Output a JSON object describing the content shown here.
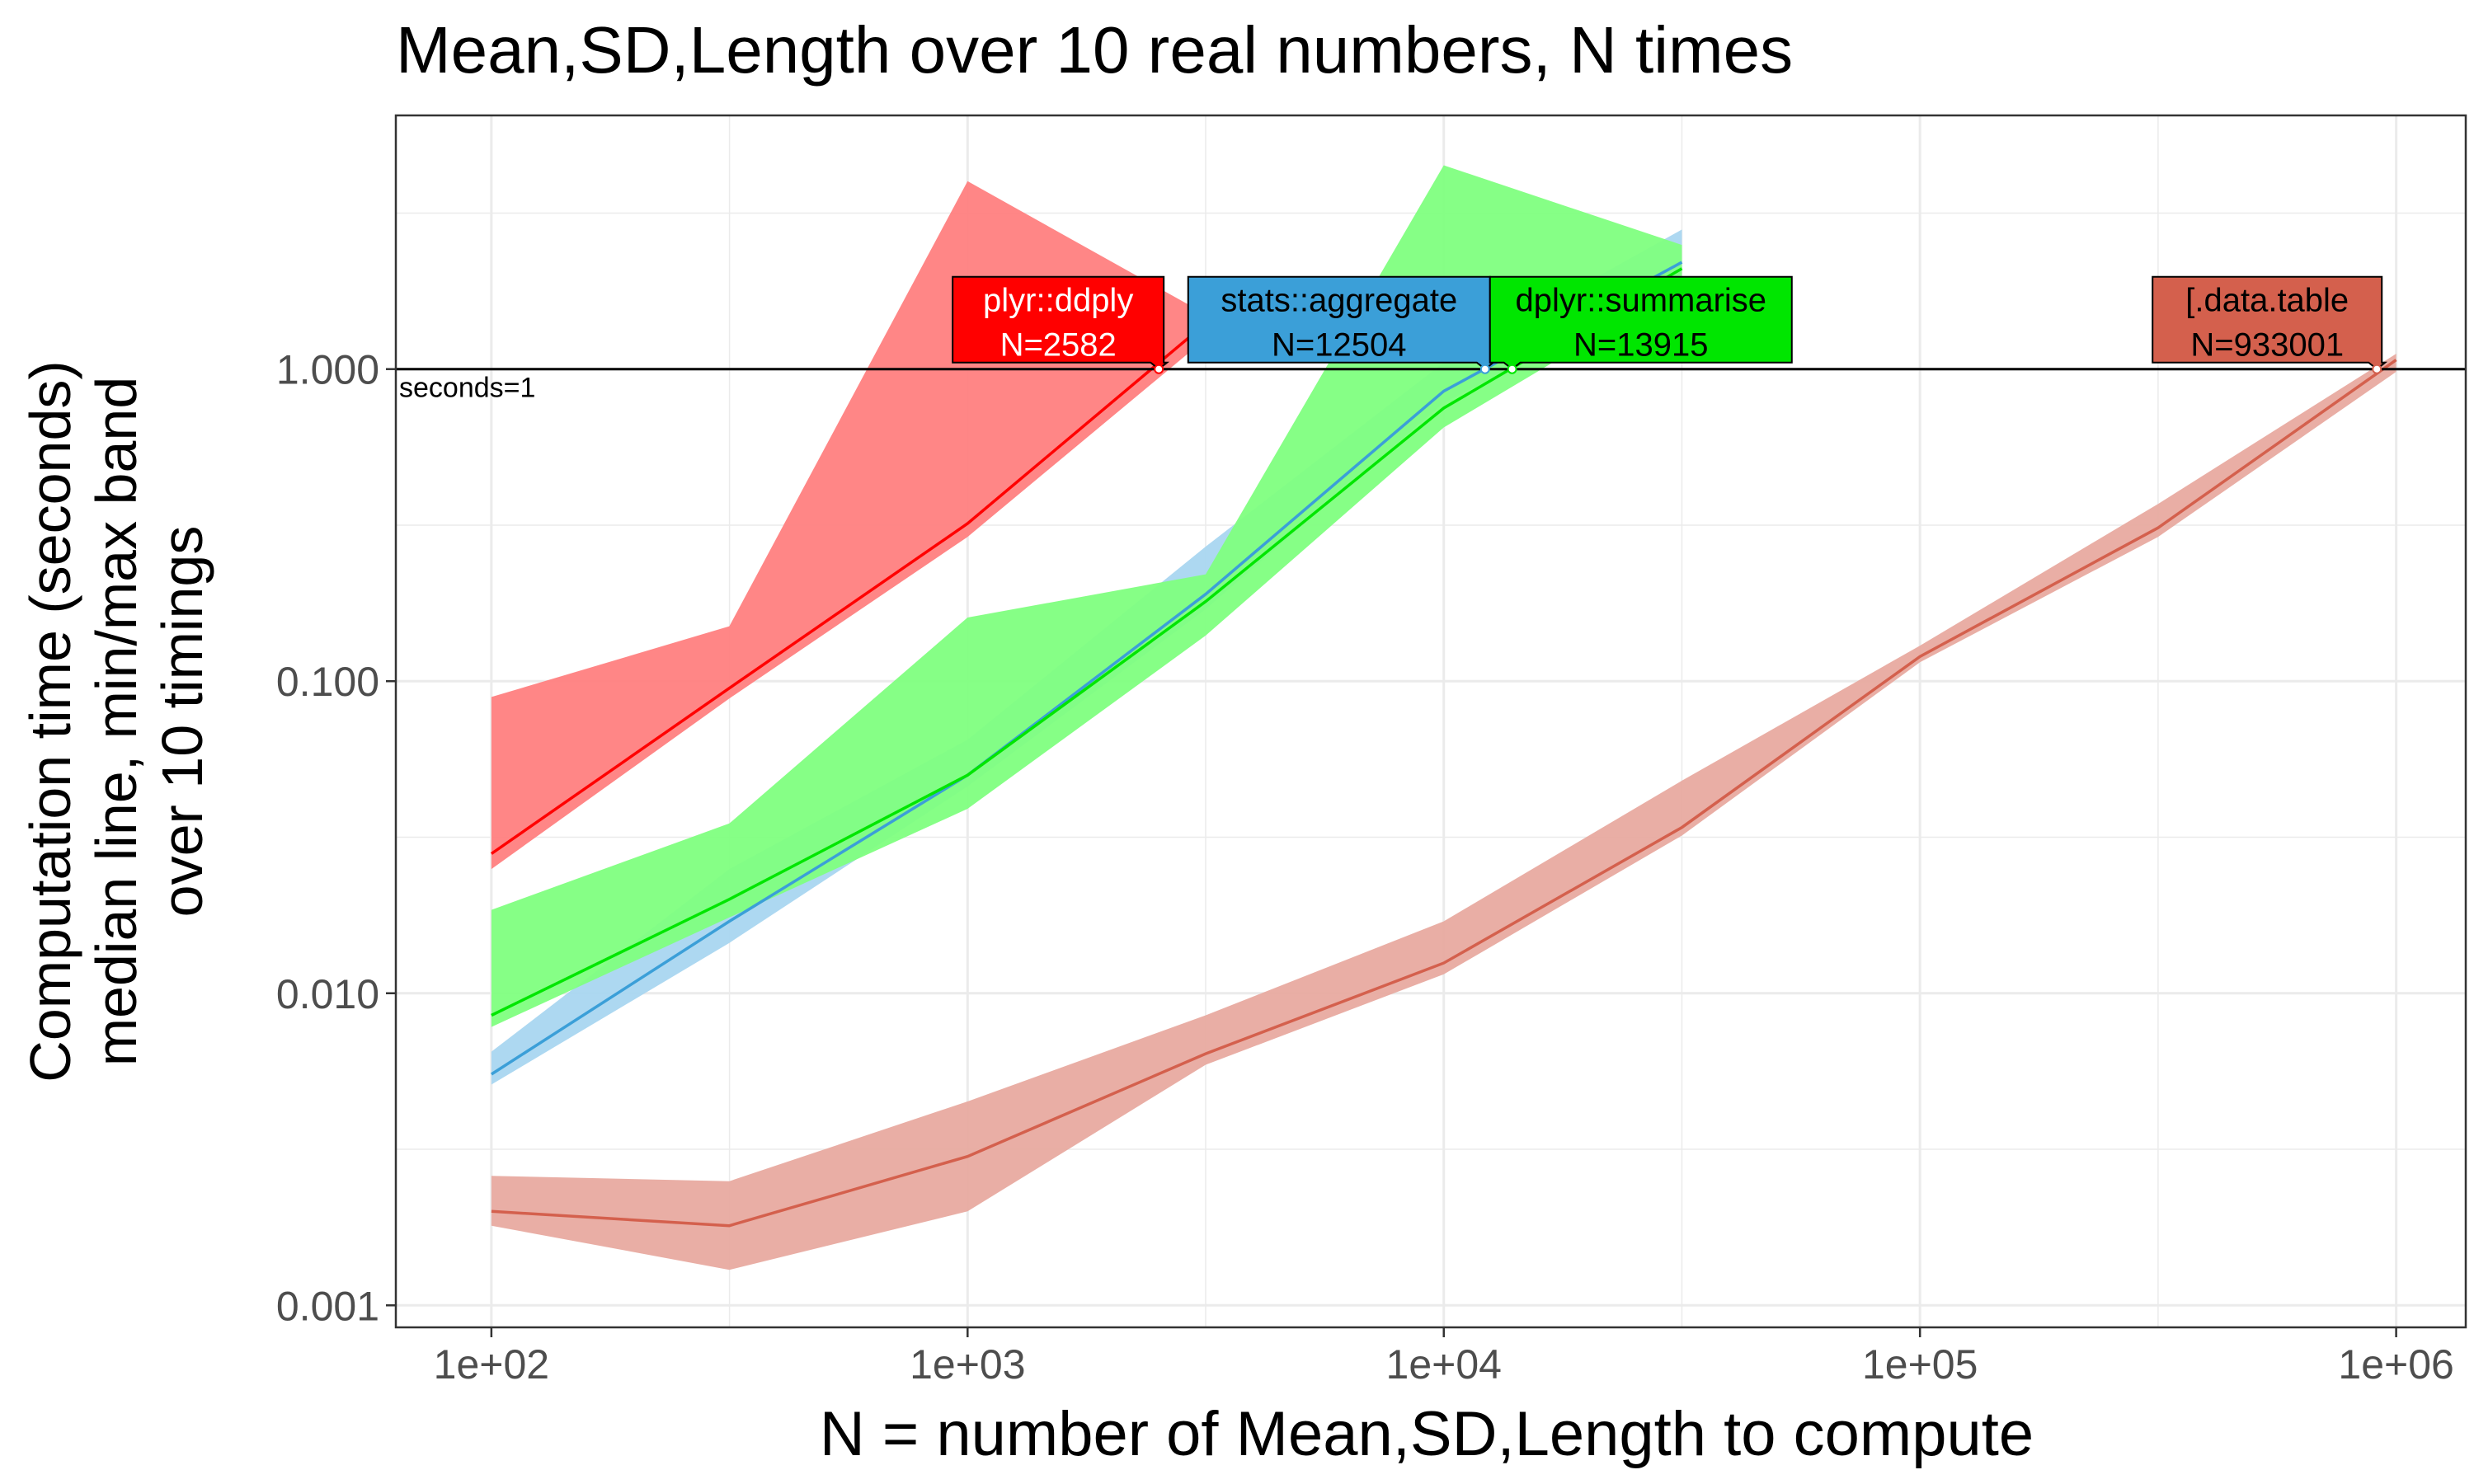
{
  "chart_data": {
    "type": "line",
    "title": "Mean,SD,Length over 10 real numbers, N times",
    "xlabel": "N = number of Mean,SD,Length to compute",
    "ylabel_lines": [
      "Computation time (seconds)",
      "median line, min/max band",
      "over 10 timings"
    ],
    "x_scale": "log10",
    "y_scale": "log10",
    "xlim": [
      63,
      1400000
    ],
    "ylim": [
      0.00085,
      6.5
    ],
    "grid": true,
    "legend": "none",
    "x_ticks": [
      {
        "value": 100,
        "label": "1e+02"
      },
      {
        "value": 1000,
        "label": "1e+03"
      },
      {
        "value": 10000,
        "label": "1e+04"
      },
      {
        "value": 100000,
        "label": "1e+05"
      },
      {
        "value": 1000000,
        "label": "1e+06"
      }
    ],
    "y_ticks": [
      {
        "value": 0.001,
        "label": "0.001"
      },
      {
        "value": 0.01,
        "label": "0.010"
      },
      {
        "value": 0.1,
        "label": "0.100"
      },
      {
        "value": 1,
        "label": "1.000"
      }
    ],
    "reference_line": {
      "y": 1,
      "label": "seconds=1"
    },
    "series": [
      {
        "name": "plyr::ddply",
        "color": "#ff0000",
        "band_color": "#ff8080",
        "x": [
          100,
          316,
          1000,
          3162
        ],
        "median": [
          0.028,
          0.095,
          0.32,
          1.4
        ],
        "min": [
          0.025,
          0.088,
          0.29,
          1.25
        ],
        "max": [
          0.089,
          0.15,
          4.0,
          1.5
        ],
        "label": "plyr::ddply",
        "n_label": "N=2582",
        "n_value": 2582
      },
      {
        "name": "[.data.table",
        "color": "#d4604d",
        "band_color": "#e8aaa0",
        "x": [
          100,
          316,
          1000,
          3162,
          10000,
          31623,
          100000,
          316228,
          1000000
        ],
        "median": [
          0.002,
          0.0018,
          0.003,
          0.0064,
          0.0125,
          0.034,
          0.12,
          0.31,
          1.07
        ],
        "min": [
          0.0018,
          0.0013,
          0.002,
          0.0059,
          0.0115,
          0.032,
          0.115,
          0.29,
          0.98
        ],
        "max": [
          0.0026,
          0.0025,
          0.0045,
          0.0085,
          0.017,
          0.048,
          0.13,
          0.37,
          1.12
        ],
        "label": "[.data.table",
        "n_label": "N=933001",
        "n_value": 933001
      },
      {
        "name": "stats::aggregate",
        "color": "#3b9fd8",
        "band_color": "#a9d6f0",
        "x": [
          100,
          316,
          1000,
          3162,
          10000,
          31623
        ],
        "median": [
          0.0055,
          0.017,
          0.05,
          0.19,
          0.85,
          2.2
        ],
        "min": [
          0.0051,
          0.0145,
          0.046,
          0.17,
          0.78,
          1.9
        ],
        "max": [
          0.0065,
          0.025,
          0.065,
          0.27,
          1.05,
          2.8
        ],
        "label": "stats::aggregate",
        "n_label": "N=12504",
        "n_value": 12504
      },
      {
        "name": "dplyr::summarise",
        "color": "#00e600",
        "band_color": "#80ff80",
        "x": [
          100,
          316,
          1000,
          3162,
          10000,
          31623
        ],
        "median": [
          0.0085,
          0.02,
          0.05,
          0.18,
          0.75,
          2.1
        ],
        "min": [
          0.0078,
          0.0175,
          0.039,
          0.14,
          0.65,
          1.85
        ],
        "max": [
          0.0185,
          0.035,
          0.16,
          0.22,
          4.5,
          2.5
        ],
        "label": "dplyr::summarise",
        "n_label": "N=13915",
        "n_value": 13915
      }
    ]
  }
}
